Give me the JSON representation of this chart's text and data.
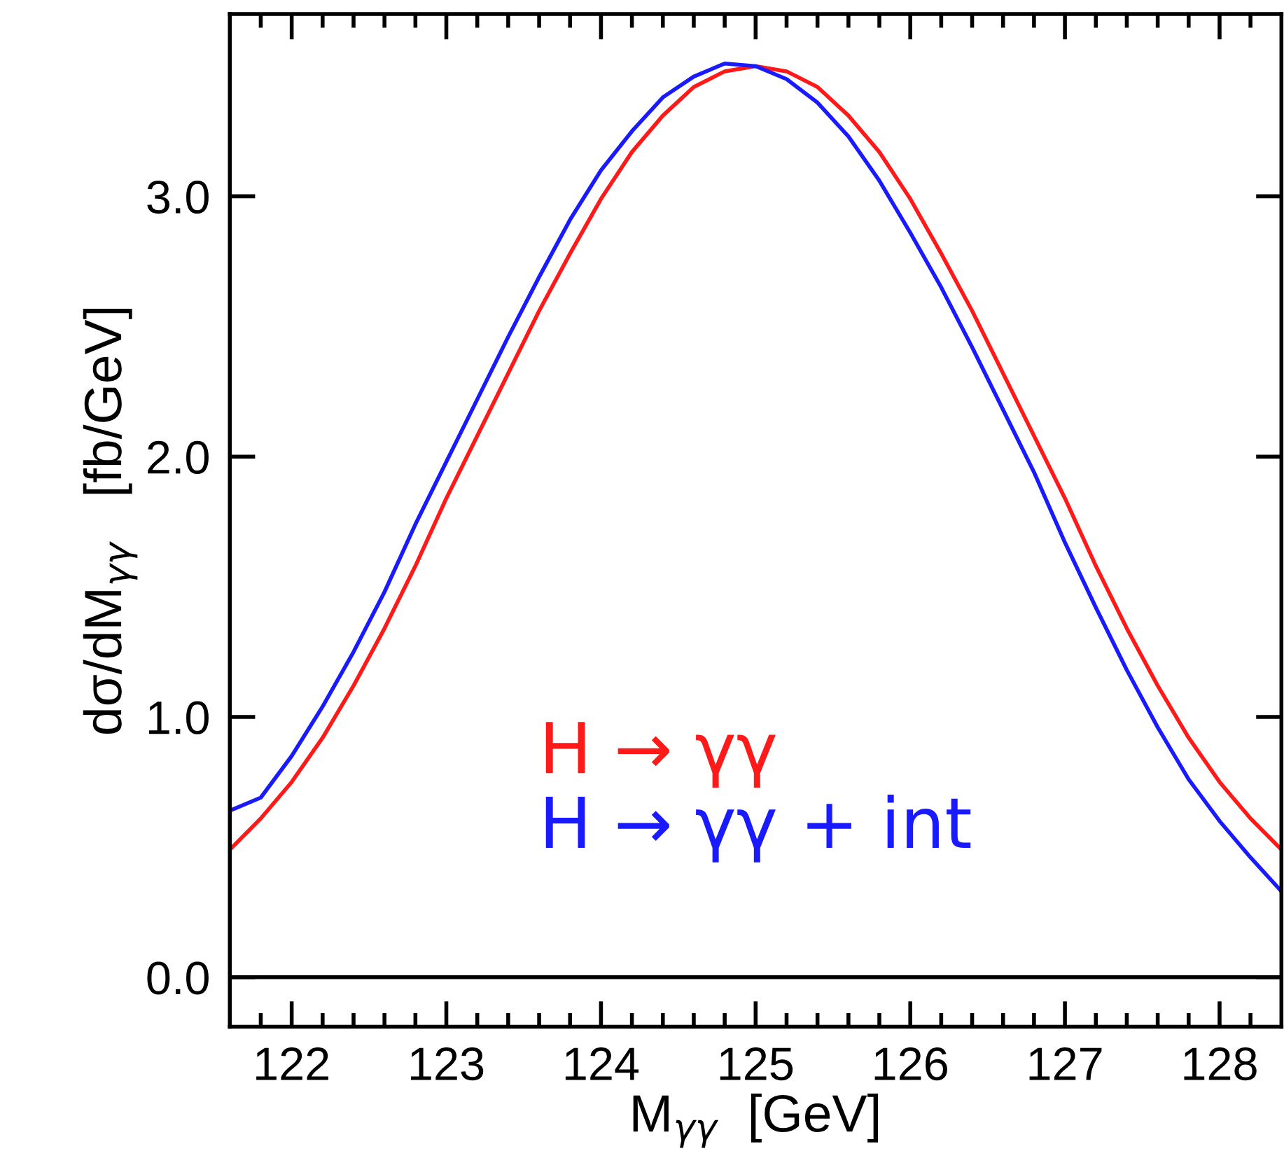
{
  "chart_data": {
    "type": "line",
    "xlabel": "M$_{γγ}$  [GeV]",
    "ylabel": "dσ/dM$_{γγ}$   [fb/GeV]",
    "x": [
      121.6,
      121.8,
      122.0,
      122.2,
      122.4,
      122.6,
      122.8,
      123.0,
      123.2,
      123.4,
      123.6,
      123.8,
      124.0,
      124.2,
      124.4,
      124.6,
      124.8,
      125.0,
      125.2,
      125.4,
      125.6,
      125.8,
      126.0,
      126.2,
      126.4,
      126.6,
      126.8,
      127.0,
      127.2,
      127.4,
      127.6,
      127.8,
      128.0,
      128.2,
      128.4
    ],
    "series": [
      {
        "name": "H → γγ",
        "color": "#ff1a1a",
        "values": [
          0.49,
          0.61,
          0.75,
          0.92,
          1.12,
          1.34,
          1.58,
          1.84,
          2.08,
          2.32,
          2.56,
          2.78,
          2.99,
          3.17,
          3.31,
          3.42,
          3.48,
          3.5,
          3.48,
          3.42,
          3.31,
          3.17,
          2.99,
          2.78,
          2.56,
          2.32,
          2.08,
          1.84,
          1.58,
          1.34,
          1.12,
          0.92,
          0.75,
          0.61,
          0.49
        ]
      },
      {
        "name": "H → γγ + int",
        "color": "#1a1aff",
        "values": [
          0.64,
          0.69,
          0.85,
          1.04,
          1.25,
          1.48,
          1.74,
          1.98,
          2.22,
          2.46,
          2.69,
          2.91,
          3.1,
          3.25,
          3.38,
          3.46,
          3.51,
          3.5,
          3.45,
          3.36,
          3.23,
          3.06,
          2.86,
          2.65,
          2.42,
          2.18,
          1.94,
          1.67,
          1.42,
          1.18,
          0.96,
          0.76,
          0.6,
          0.46,
          0.33
        ]
      }
    ],
    "xlim": [
      121.6,
      128.4
    ],
    "ylim": [
      -0.19,
      3.7
    ],
    "xticks": [
      {
        "value": 121.8,
        "label": null
      },
      122,
      {
        "value": 122.2,
        "label": null
      },
      {
        "value": 122.4,
        "label": null
      },
      {
        "value": 122.6,
        "label": null
      },
      {
        "value": 122.8,
        "label": null
      },
      123,
      {
        "value": 123.2,
        "label": null
      },
      {
        "value": 123.4,
        "label": null
      },
      {
        "value": 123.6,
        "label": null
      },
      {
        "value": 123.8,
        "label": null
      },
      124,
      {
        "value": 124.2,
        "label": null
      },
      {
        "value": 124.4,
        "label": null
      },
      {
        "value": 124.6,
        "label": null
      },
      {
        "value": 124.8,
        "label": null
      },
      125,
      {
        "value": 125.2,
        "label": null
      },
      {
        "value": 125.4,
        "label": null
      },
      {
        "value": 125.6,
        "label": null
      },
      {
        "value": 125.8,
        "label": null
      },
      126,
      {
        "value": 126.2,
        "label": null
      },
      {
        "value": 126.4,
        "label": null
      },
      {
        "value": 126.6,
        "label": null
      },
      {
        "value": 126.8,
        "label": null
      },
      127,
      {
        "value": 127.2,
        "label": null
      },
      {
        "value": 127.4,
        "label": null
      },
      {
        "value": 127.6,
        "label": null
      },
      {
        "value": 127.8,
        "label": null
      },
      128,
      {
        "value": 128.2,
        "label": null
      }
    ],
    "yticks": [
      {
        "value": 0,
        "label": "0.0"
      },
      {
        "value": 1,
        "label": "1.0"
      },
      {
        "value": 2,
        "label": "2.0"
      },
      {
        "value": 3,
        "label": "3.0"
      }
    ],
    "ref_lines": [
      {
        "axis": "y",
        "value": 0,
        "color": "#000000"
      }
    ],
    "legend": "bottom",
    "grid": false,
    "marker": "none",
    "line_style": "solid"
  }
}
